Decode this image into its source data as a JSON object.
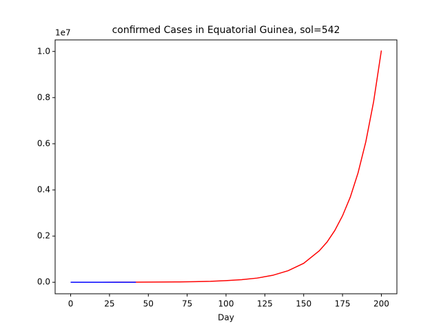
{
  "chart_data": {
    "type": "line",
    "title": "confirmed Cases in Equatorial Guinea, sol=542",
    "x_label": "Day",
    "y_offset_label": "1e7",
    "xlim": [
      -10,
      210
    ],
    "xticks": [
      0,
      25,
      50,
      75,
      100,
      125,
      150,
      175,
      200
    ],
    "ylim": [
      -0.05,
      1.05
    ],
    "yticks": [
      {
        "value": 0,
        "label": "0.0"
      },
      0.2,
      0.4,
      0.6,
      0.8,
      {
        "value": 1,
        "label": "1.0"
      }
    ],
    "series": [
      {
        "color": "#ff0000",
        "x": [
          0,
          10,
          20,
          30,
          40,
          50,
          60,
          70,
          80,
          90,
          100,
          110,
          120,
          130,
          140,
          150,
          160,
          165,
          170,
          175,
          180,
          185,
          190,
          195,
          200
        ],
        "values": [
          0,
          0.0001,
          0.0001,
          0.0002,
          0.0003,
          0.0006,
          0.0009,
          0.0015,
          0.0025,
          0.004,
          0.007,
          0.011,
          0.018,
          0.03,
          0.05,
          0.082,
          0.136,
          0.174,
          0.224,
          0.288,
          0.369,
          0.474,
          0.609,
          0.782,
          1.004
        ]
      },
      {
        "color": "#0000ff",
        "x": [
          0,
          10,
          20,
          30,
          42
        ],
        "values": [
          0,
          0,
          0,
          0,
          0
        ]
      }
    ]
  }
}
